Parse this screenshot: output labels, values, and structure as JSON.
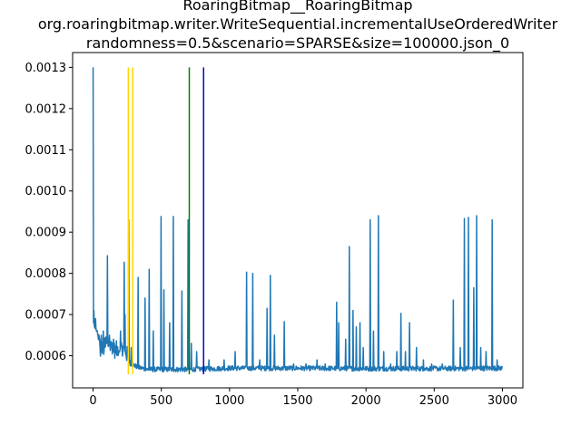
{
  "chart_data": {
    "type": "line",
    "title_lines": [
      "RoaringBitmap__RoaringBitmap",
      "org.roaringbitmap.writer.WriteSequential.incrementalUseOrderedWriter",
      "randomness=0.5&scenario=SPARSE&size=100000.json_0"
    ],
    "xlabel": "",
    "ylabel": "",
    "xlim": [
      -150,
      3150
    ],
    "ylim": [
      0.000522,
      0.001336
    ],
    "xticks": [
      0,
      500,
      1000,
      1500,
      2000,
      2500,
      3000
    ],
    "xtick_labels": [
      "0",
      "500",
      "1000",
      "1500",
      "2000",
      "2500",
      "3000"
    ],
    "yticks": [
      0.0006,
      0.0007,
      0.0008,
      0.0009,
      0.001,
      0.0011,
      0.0012,
      0.0013
    ],
    "ytick_labels": [
      "0.0006",
      "0.0007",
      "0.0008",
      "0.0009",
      "0.0010",
      "0.0011",
      "0.0012",
      "0.0013"
    ],
    "grid": false,
    "series": [
      {
        "color": "#1f77b4",
        "baseline": [
          [
            0,
            0.0013
          ],
          [
            3,
            0.00068
          ],
          [
            10,
            0.00067
          ],
          [
            25,
            0.00066
          ],
          [
            40,
            0.00064
          ],
          [
            55,
            0.00061
          ],
          [
            80,
            0.00062
          ],
          [
            100,
            0.00063
          ],
          [
            130,
            0.000625
          ],
          [
            160,
            0.00061
          ],
          [
            200,
            0.000615
          ],
          [
            240,
            0.00061
          ],
          [
            270,
            0.00058
          ],
          [
            300,
            0.000575
          ],
          [
            330,
            0.00057
          ],
          [
            400,
            0.000565
          ],
          [
            500,
            0.000565
          ],
          [
            700,
            0.000565
          ],
          [
            1000,
            0.000568
          ],
          [
            1500,
            0.000568
          ],
          [
            2000,
            0.000567
          ],
          [
            2500,
            0.000567
          ],
          [
            3000,
            0.000568
          ]
        ],
        "spikes": [
          [
            0,
            0.0013
          ],
          [
            5,
            0.00071
          ],
          [
            18,
            0.00069
          ],
          [
            60,
            0.00065
          ],
          [
            75,
            0.00066
          ],
          [
            105,
            0.000843
          ],
          [
            120,
            0.00065
          ],
          [
            150,
            0.00064
          ],
          [
            200,
            0.00066
          ],
          [
            228,
            0.000827
          ],
          [
            235,
            0.0007
          ],
          [
            262,
            0.00093
          ],
          [
            280,
            0.00062
          ],
          [
            330,
            0.00079
          ],
          [
            380,
            0.00074
          ],
          [
            410,
            0.00081
          ],
          [
            440,
            0.00066
          ],
          [
            498,
            0.000938
          ],
          [
            520,
            0.00076
          ],
          [
            560,
            0.00068
          ],
          [
            588,
            0.000938
          ],
          [
            650,
            0.000757
          ],
          [
            695,
            0.00093
          ],
          [
            720,
            0.00063
          ],
          [
            760,
            0.00061
          ],
          [
            850,
            0.00059
          ],
          [
            960,
            0.00059
          ],
          [
            1040,
            0.00061
          ],
          [
            1125,
            0.000803
          ],
          [
            1170,
            0.0008
          ],
          [
            1220,
            0.00059
          ],
          [
            1275,
            0.000715
          ],
          [
            1300,
            0.000795
          ],
          [
            1330,
            0.00065
          ],
          [
            1400,
            0.000683
          ],
          [
            1470,
            0.00058
          ],
          [
            1560,
            0.00058
          ],
          [
            1640,
            0.00059
          ],
          [
            1700,
            0.00058
          ],
          [
            1785,
            0.00073
          ],
          [
            1800,
            0.00068
          ],
          [
            1850,
            0.00064
          ],
          [
            1878,
            0.000865
          ],
          [
            1905,
            0.00071
          ],
          [
            1930,
            0.00067
          ],
          [
            1955,
            0.00068
          ],
          [
            1980,
            0.00062
          ],
          [
            2030,
            0.00093
          ],
          [
            2055,
            0.00066
          ],
          [
            2090,
            0.00094
          ],
          [
            2130,
            0.00061
          ],
          [
            2180,
            0.00058
          ],
          [
            2225,
            0.00061
          ],
          [
            2255,
            0.000703
          ],
          [
            2290,
            0.00061
          ],
          [
            2320,
            0.00068
          ],
          [
            2370,
            0.00062
          ],
          [
            2420,
            0.00059
          ],
          [
            2480,
            0.00058
          ],
          [
            2560,
            0.00058
          ],
          [
            2640,
            0.000735
          ],
          [
            2690,
            0.00062
          ],
          [
            2720,
            0.000933
          ],
          [
            2750,
            0.000936
          ],
          [
            2790,
            0.000765
          ],
          [
            2810,
            0.00094
          ],
          [
            2840,
            0.00062
          ],
          [
            2880,
            0.00061
          ],
          [
            2925,
            0.00093
          ],
          [
            2960,
            0.00059
          ]
        ]
      }
    ],
    "vlines": [
      {
        "x": 258,
        "color": "#ffd700"
      },
      {
        "x": 290,
        "color": "#ffd700"
      },
      {
        "x": 705,
        "color": "#007f00"
      },
      {
        "x": 810,
        "color": "#0000cc"
      }
    ]
  }
}
